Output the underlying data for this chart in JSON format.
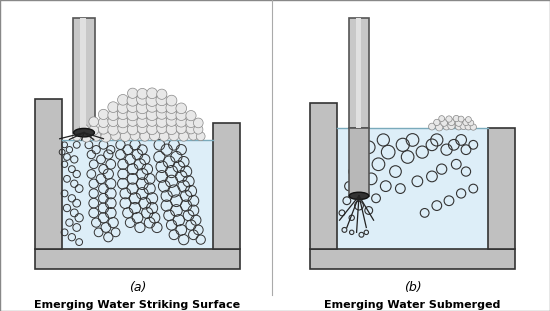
{
  "bg_color": "#ffffff",
  "tank_fill_color": "#ddeef8",
  "tank_wall_color": "#c0c0c0",
  "wall_edge_color": "#333333",
  "pipe_color": "#c8c8c8",
  "pipe_edge_color": "#555555",
  "nozzle_color": "#333333",
  "stream_color": "#222222",
  "bubble_edge_color": "#333333",
  "foam_fill": "#e8e8e8",
  "foam_edge": "#888888",
  "water_line_color": "#7aaabb",
  "title_a": "(a)",
  "title_b": "(b)",
  "label_a": "Emerging Water Striking Surface",
  "label_b": "Emerging Water Submerged",
  "label_fontsize": 8,
  "title_fontsize": 9,
  "outer_border_color": "#555555"
}
